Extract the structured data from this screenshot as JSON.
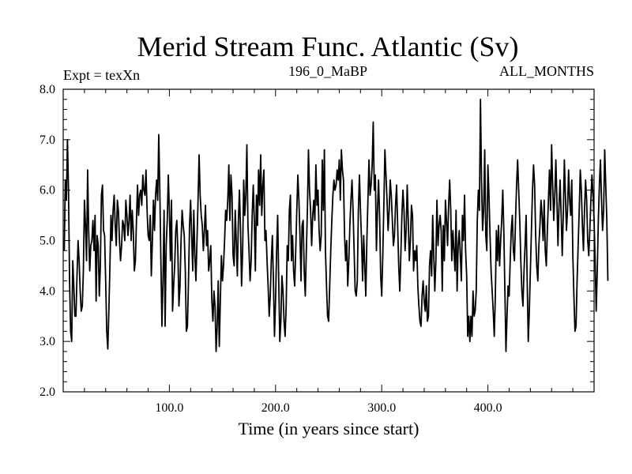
{
  "chart_data": {
    "type": "line",
    "title": "Merid Stream Func. Atlantic (Sv)",
    "subtitle_left": "Expt = texXn",
    "subtitle_center": "196_0_MaBP",
    "subtitle_right": "ALL_MONTHS",
    "xlabel": "Time (in years since start)",
    "ylabel": "",
    "xlim": [
      0,
      500
    ],
    "ylim": [
      2.0,
      8.0
    ],
    "x_ticks": [
      100,
      200,
      300,
      400
    ],
    "x_tick_labels": [
      "100.0",
      "200.0",
      "300.0",
      "400.0"
    ],
    "y_ticks": [
      2,
      3,
      4,
      5,
      6,
      7,
      8
    ],
    "y_tick_labels": [
      "2.0",
      "3.0",
      "4.0",
      "5.0",
      "6.0",
      "7.0",
      "8.0"
    ],
    "grid": false,
    "series": [
      {
        "name": "Merid Stream Func. Atlantic",
        "x_start": 1,
        "x_step": 1,
        "values": [
          4.8,
          6.2,
          5.8,
          7.0,
          6.0,
          4.2,
          3.2,
          3.0,
          4.6,
          4.1,
          3.5,
          3.5,
          4.3,
          5.0,
          4.6,
          4.0,
          3.6,
          3.7,
          4.4,
          5.8,
          5.3,
          4.6,
          6.4,
          5.2,
          4.4,
          4.9,
          5.0,
          5.4,
          4.8,
          5.5,
          3.8,
          5.1,
          4.9,
          3.9,
          4.5,
          5.9,
          6.1,
          5.2,
          5.1,
          4.2,
          3.2,
          2.85,
          3.6,
          4.5,
          5.5,
          5.0,
          5.6,
          5.9,
          5.3,
          4.9,
          5.8,
          5.6,
          5.0,
          4.6,
          4.9,
          5.4,
          5.3,
          5.0,
          5.8,
          5.5,
          5.1,
          5.4,
          5.9,
          5.0,
          5.6,
          5.2,
          4.4,
          4.6,
          5.4,
          6.1,
          5.5,
          5.9,
          6.0,
          5.7,
          6.3,
          6.0,
          5.9,
          6.4,
          5.6,
          5.1,
          5.0,
          5.5,
          4.3,
          5.0,
          5.8,
          5.2,
          5.9,
          6.2,
          5.8,
          7.1,
          6.0,
          4.6,
          3.3,
          4.2,
          5.6,
          3.3,
          4.9,
          5.4,
          6.3,
          5.6,
          4.6,
          5.8,
          3.6,
          4.1,
          4.5,
          5.2,
          5.4,
          4.8,
          3.7,
          4.1,
          5.0,
          5.6,
          5.3,
          5.1,
          4.4,
          3.2,
          3.3,
          4.2,
          5.3,
          5.8,
          5.1,
          4.4,
          5.6,
          4.7,
          4.2,
          5.0,
          5.8,
          6.7,
          5.9,
          5.5,
          5.3,
          4.8,
          5.2,
          5.7,
          4.9,
          5.2,
          4.4,
          4.6,
          4.9,
          3.8,
          3.4,
          4.0,
          3.7,
          2.8,
          3.3,
          4.2,
          2.9,
          3.8,
          4.7,
          4.2,
          4.5,
          5.0,
          5.6,
          5.4,
          5.8,
          6.5,
          5.4,
          6.3,
          5.9,
          4.7,
          4.5,
          5.6,
          5.0,
          4.3,
          5.4,
          6.0,
          5.2,
          4.1,
          4.8,
          6.2,
          5.5,
          5.9,
          6.9,
          5.3,
          4.8,
          4.2,
          4.6,
          5.5,
          6.1,
          5.4,
          4.4,
          5.9,
          5.3,
          6.4,
          5.7,
          6.7,
          5.5,
          6.1,
          6.4,
          5.0,
          5.2,
          4.6,
          4.1,
          3.5,
          3.9,
          4.6,
          5.1,
          4.2,
          3.1,
          3.8,
          4.8,
          5.5,
          4.2,
          3.0,
          3.4,
          4.3,
          4.0,
          3.4,
          3.1,
          3.7,
          4.9,
          4.6,
          5.6,
          5.9,
          4.6,
          5.1,
          4.4,
          4.1,
          4.8,
          5.6,
          6.3,
          5.8,
          5.1,
          4.2,
          5.3,
          5.4,
          4.4,
          3.9,
          4.8,
          5.6,
          6.8,
          6.0,
          5.6,
          4.9,
          5.5,
          5.8,
          5.4,
          6.5,
          5.7,
          6.0,
          5.2,
          4.8,
          5.1,
          6.6,
          5.6,
          6.8,
          4.8,
          4.1,
          3.5,
          3.4,
          4.1,
          4.8,
          5.4,
          5.9,
          6.2,
          6.0,
          6.1,
          6.4,
          6.2,
          6.6,
          5.8,
          6.8,
          6.4,
          6.2,
          5.1,
          4.6,
          5.0,
          4.1,
          4.6,
          5.3,
          5.8,
          6.2,
          5.6,
          4.8,
          4.0,
          3.9,
          4.2,
          5.6,
          6.3,
          5.6,
          5.0,
          4.2,
          5.1,
          4.5,
          3.9,
          5.0,
          5.8,
          6.6,
          5.9,
          6.1,
          6.5,
          7.35,
          6.0,
          6.3,
          4.8,
          5.6,
          6.2,
          5.5,
          4.3,
          3.9,
          4.7,
          5.7,
          6.8,
          6.3,
          5.8,
          5.2,
          5.6,
          6.2,
          5.9,
          5.4,
          4.9,
          5.1,
          5.7,
          6.1,
          5.3,
          4.5,
          4.0,
          4.7,
          5.5,
          6.0,
          5.6,
          4.8,
          5.2,
          6.1,
          5.4,
          4.6,
          5.0,
          5.7,
          5.5,
          4.4,
          4.8,
          4.6,
          4.9,
          4.1,
          3.7,
          3.4,
          3.3,
          3.9,
          4.2,
          3.8,
          3.6,
          4.1,
          3.4,
          3.5,
          4.5,
          4.8,
          4.3,
          5.5,
          4.7,
          4.0,
          4.6,
          5.8,
          4.9,
          5.3,
          5.5,
          5.2,
          4.0,
          5.3,
          4.6,
          5.8,
          5.4,
          4.9,
          5.7,
          6.2,
          5.6,
          4.6,
          5.2,
          4.8,
          4.4,
          5.6,
          4.0,
          4.9,
          5.2,
          4.7,
          4.2,
          5.5,
          5.0,
          5.9,
          4.8,
          4.3,
          3.1,
          3.5,
          3.0,
          3.5,
          3.1,
          4.0,
          3.5,
          3.6,
          4.0,
          5.4,
          6.0,
          5.6,
          7.8,
          6.2,
          5.2,
          5.6,
          6.8,
          5.1,
          4.8,
          6.5,
          5.9,
          5.1,
          4.4,
          4.0,
          3.6,
          3.1,
          3.9,
          5.2,
          4.6,
          5.3,
          4.5,
          5.0,
          5.4,
          6.0,
          5.2,
          4.0,
          2.8,
          3.5,
          4.1,
          3.9,
          4.6,
          5.2,
          5.5,
          4.8,
          4.6,
          5.4,
          6.1,
          6.6,
          6.0,
          5.4,
          4.6,
          4.0,
          3.7,
          4.4,
          4.9,
          5.5,
          4.2,
          3.0,
          3.6,
          4.4,
          5.2,
          6.0,
          6.5,
          6.1,
          5.1,
          4.5,
          4.2,
          4.9,
          5.3,
          5.8,
          5.5,
          5.0,
          5.8,
          4.8,
          4.5,
          5.2,
          5.8,
          6.4,
          5.6,
          6.9,
          6.1,
          5.4,
          5.9,
          6.6,
          5.8,
          4.9,
          5.7,
          6.2,
          5.5,
          4.7,
          5.5,
          6.6,
          5.9,
          5.2,
          5.6,
          6.4,
          5.8,
          5.5,
          6.2,
          4.7,
          3.9,
          3.2,
          3.3,
          4.2,
          4.9,
          5.6,
          6.4,
          6.0,
          5.3,
          4.8,
          5.6,
          6.2,
          5.8,
          5.0,
          4.7,
          5.2,
          5.8,
          6.3,
          5.9,
          5.4,
          4.6,
          3.6,
          4.4,
          5.4,
          6.1,
          6.6,
          5.8,
          5.2,
          5.6,
          6.8,
          6.1,
          5.4,
          4.2
        ]
      }
    ]
  }
}
